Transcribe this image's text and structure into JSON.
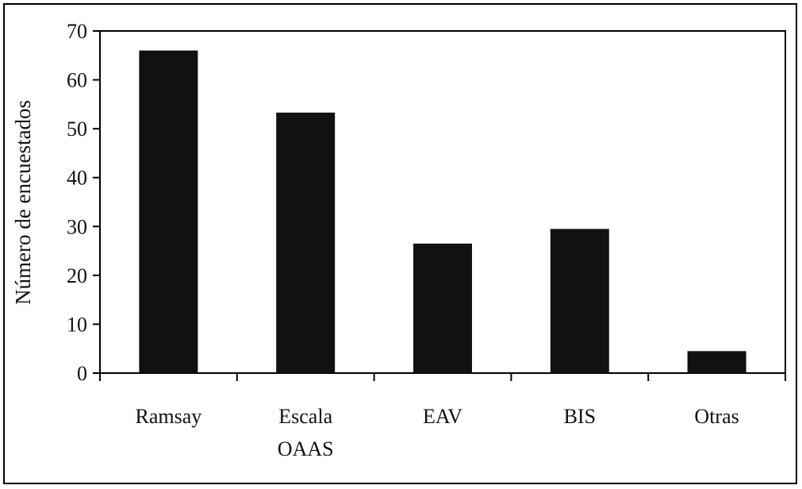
{
  "chart_data": {
    "type": "bar",
    "title": "",
    "xlabel": "",
    "ylabel": "Número de encuestados",
    "categories": [
      [
        "Ramsay"
      ],
      [
        "Escala",
        "OAAS"
      ],
      [
        "EAV"
      ],
      [
        "BIS"
      ],
      [
        "Otras"
      ]
    ],
    "values": [
      66,
      53.3,
      26.5,
      29.5,
      4.5
    ],
    "ylim": [
      0,
      70
    ],
    "yticks": [
      0,
      10,
      20,
      30,
      40,
      50,
      60,
      70
    ],
    "grid": false,
    "bar_color": "#111111"
  }
}
